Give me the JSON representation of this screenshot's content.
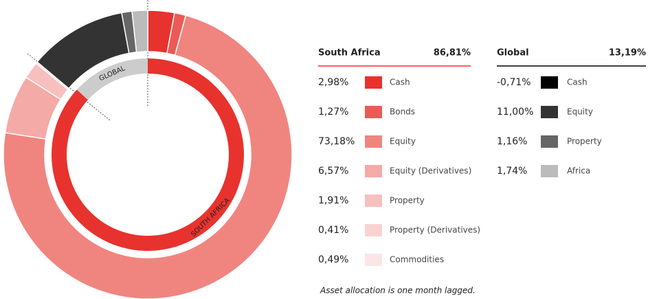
{
  "chart_data": {
    "type": "sunburst",
    "groups": [
      {
        "name": "South Africa",
        "ring_label": "SOUTH AFRICA",
        "value": 86.81,
        "value_label": "86,81%",
        "color": "#e8322e",
        "categories": [
          "Cash",
          "Bonds",
          "Equity",
          "Equity (Derivatives)",
          "Property",
          "Property (Derivatives)",
          "Commodities"
        ],
        "values": [
          2.98,
          1.27,
          73.18,
          6.57,
          1.91,
          0.41,
          0.49
        ],
        "value_labels": [
          "2,98%",
          "1,27%",
          "73,18%",
          "6,57%",
          "1,91%",
          "0,41%",
          "0,49%"
        ],
        "colors": [
          "#e8322e",
          "#ec5a55",
          "#f08580",
          "#f4aaa7",
          "#f7c0be",
          "#f9d3d2",
          "#fce6e5"
        ]
      },
      {
        "name": "Global",
        "ring_label": "GLOBAL",
        "value": 13.19,
        "value_label": "13,19%",
        "color": "#cccccc",
        "categories": [
          "Cash",
          "Equity",
          "Property",
          "Africa"
        ],
        "values": [
          -0.71,
          11.0,
          1.16,
          1.74
        ],
        "value_labels": [
          "-0,71%",
          "11,00%",
          "1,16%",
          "1,74%"
        ],
        "colors": [
          "#000000",
          "#333333",
          "#666666",
          "#bbbbbb"
        ]
      }
    ],
    "note": "Asset allocation is one month lagged."
  }
}
